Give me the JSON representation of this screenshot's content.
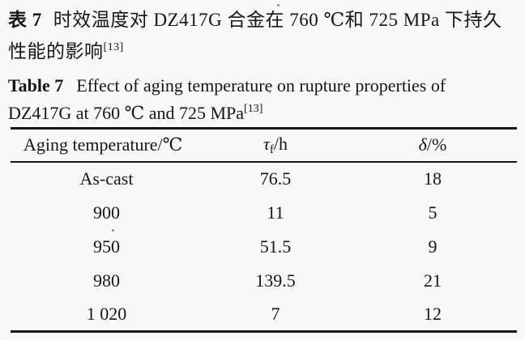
{
  "document": {
    "background": "#f8f8f6",
    "ink": "#161616"
  },
  "caption_zh": {
    "label": "表 7",
    "line1": "时效温度对 DZ417G 合金在 760 ℃和 725 MPa 下持久",
    "line2": "性能的影响",
    "ref": "[13]"
  },
  "caption_en": {
    "label": "Table 7",
    "line1": "Effect of aging temperature on rupture properties of",
    "line2": "DZ417G at 760 ℃ and 725 MPa",
    "ref": "[13]"
  },
  "table": {
    "headers": {
      "aging_temperature": "Aging temperature/℃",
      "tau_symbol": "τ",
      "tau_sub": "f",
      "tau_unit": "/h",
      "delta_symbol": "δ",
      "delta_unit": "/%"
    },
    "rows": [
      {
        "aging_temperature": "As-cast",
        "rupture_life_h": "76.5",
        "elongation_pct": "18"
      },
      {
        "aging_temperature": "900",
        "rupture_life_h": "11",
        "elongation_pct": "5"
      },
      {
        "aging_temperature": "950",
        "rupture_life_h": "51.5",
        "elongation_pct": "9"
      },
      {
        "aging_temperature": "980",
        "rupture_life_h": "139.5",
        "elongation_pct": "21"
      },
      {
        "aging_temperature": "1 020",
        "rupture_life_h": "7",
        "elongation_pct": "12"
      }
    ]
  },
  "chart_data": {
    "type": "table",
    "title": "Effect of aging temperature on rupture properties of DZ417G at 760 ℃ and 725 MPa",
    "columns": [
      "Aging temperature/℃",
      "τf/h",
      "δ/%"
    ],
    "categories": [
      "As-cast",
      "900",
      "950",
      "980",
      "1 020"
    ],
    "series": [
      {
        "name": "τf/h",
        "values": [
          76.5,
          11,
          51.5,
          139.5,
          7
        ]
      },
      {
        "name": "δ/%",
        "values": [
          18,
          5,
          9,
          21,
          12
        ]
      }
    ]
  }
}
